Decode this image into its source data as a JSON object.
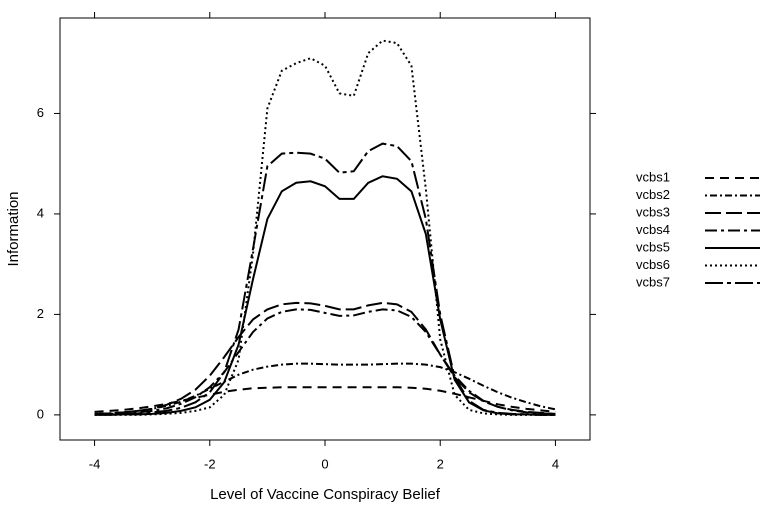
{
  "chart_data": {
    "type": "line",
    "xlabel": "Level of Vaccine Conspiracy Belief",
    "ylabel": "Information",
    "x": [
      -4,
      -3.75,
      -3.5,
      -3.25,
      -3,
      -2.75,
      -2.5,
      -2.25,
      -2,
      -1.75,
      -1.5,
      -1.25,
      -1,
      -0.75,
      -0.5,
      -0.25,
      0,
      0.25,
      0.5,
      0.75,
      1,
      1.25,
      1.5,
      1.75,
      2,
      2.25,
      2.5,
      2.75,
      3,
      3.25,
      3.5,
      3.75,
      4
    ],
    "series": [
      {
        "name": "vcbs1",
        "color": "#000000",
        "dash": "9,6",
        "values": [
          0.06,
          0.08,
          0.1,
          0.13,
          0.17,
          0.22,
          0.28,
          0.34,
          0.4,
          0.46,
          0.5,
          0.53,
          0.54,
          0.55,
          0.55,
          0.55,
          0.55,
          0.55,
          0.55,
          0.55,
          0.55,
          0.55,
          0.54,
          0.52,
          0.48,
          0.42,
          0.35,
          0.28,
          0.21,
          0.16,
          0.12,
          0.09,
          0.06
        ]
      },
      {
        "name": "vcbs2",
        "color": "#000000",
        "dash": "2,3,7,3",
        "values": [
          0.02,
          0.03,
          0.05,
          0.08,
          0.12,
          0.18,
          0.26,
          0.38,
          0.52,
          0.66,
          0.8,
          0.9,
          0.96,
          1.0,
          1.02,
          1.02,
          1.01,
          1.0,
          1.0,
          1.0,
          1.01,
          1.02,
          1.02,
          1.0,
          0.95,
          0.85,
          0.72,
          0.58,
          0.45,
          0.34,
          0.25,
          0.17,
          0.11
        ]
      },
      {
        "name": "vcbs3",
        "color": "#000000",
        "dash": "16,5",
        "values": [
          0.02,
          0.03,
          0.05,
          0.08,
          0.12,
          0.2,
          0.32,
          0.5,
          0.78,
          1.15,
          1.55,
          1.9,
          2.1,
          2.2,
          2.23,
          2.22,
          2.17,
          2.1,
          2.1,
          2.18,
          2.23,
          2.2,
          2.05,
          1.7,
          1.2,
          0.75,
          0.45,
          0.27,
          0.16,
          0.1,
          0.06,
          0.04,
          0.02
        ]
      },
      {
        "name": "vcbs4",
        "color": "#000000",
        "dash": "12,4,3,4",
        "values": [
          0.01,
          0.02,
          0.03,
          0.05,
          0.08,
          0.13,
          0.22,
          0.35,
          0.55,
          0.85,
          1.25,
          1.65,
          1.92,
          2.05,
          2.1,
          2.09,
          2.03,
          1.97,
          1.98,
          2.05,
          2.1,
          2.08,
          1.95,
          1.65,
          1.2,
          0.78,
          0.48,
          0.28,
          0.16,
          0.09,
          0.05,
          0.03,
          0.02
        ]
      },
      {
        "name": "vcbs5",
        "color": "#000000",
        "dash": "none",
        "values": [
          0,
          0,
          0.01,
          0.01,
          0.02,
          0.04,
          0.08,
          0.15,
          0.3,
          0.65,
          1.4,
          2.7,
          3.9,
          4.45,
          4.62,
          4.65,
          4.55,
          4.3,
          4.3,
          4.62,
          4.75,
          4.7,
          4.45,
          3.6,
          1.9,
          0.7,
          0.25,
          0.09,
          0.03,
          0.01,
          0.01,
          0,
          0
        ]
      },
      {
        "name": "vcbs6",
        "color": "#000000",
        "dash": "2,3",
        "values": [
          0,
          0,
          0,
          0,
          0.01,
          0.02,
          0.04,
          0.08,
          0.15,
          0.4,
          1.1,
          3.2,
          6.1,
          6.85,
          7.0,
          7.1,
          6.95,
          6.4,
          6.35,
          7.2,
          7.45,
          7.4,
          6.95,
          4.5,
          1.5,
          0.4,
          0.1,
          0.03,
          0.01,
          0,
          0,
          0,
          0
        ]
      },
      {
        "name": "vcbs7",
        "color": "#000000",
        "dash": "18,4,4,4",
        "values": [
          0.01,
          0.01,
          0.02,
          0.03,
          0.05,
          0.08,
          0.14,
          0.25,
          0.45,
          0.85,
          1.7,
          3.3,
          4.95,
          5.2,
          5.22,
          5.2,
          5.1,
          4.82,
          4.85,
          5.25,
          5.4,
          5.35,
          5.05,
          3.9,
          2.0,
          0.75,
          0.28,
          0.1,
          0.04,
          0.02,
          0.01,
          0,
          0
        ]
      }
    ],
    "xlim": [
      -4.6,
      4.6
    ],
    "ylim": [
      -0.5,
      7.9
    ],
    "xticks": [
      -4,
      -2,
      0,
      2,
      4
    ],
    "yticks": [
      0,
      2,
      4,
      6
    ],
    "legend": "right"
  }
}
